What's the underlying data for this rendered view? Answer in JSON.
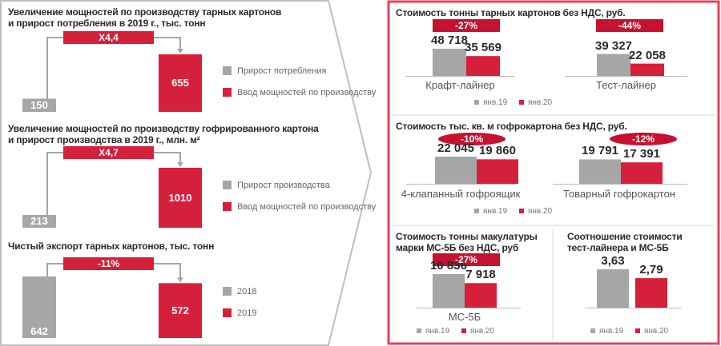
{
  "colors": {
    "gray": "#a6a6a6",
    "red": "#d5203b",
    "badge": "#c41230",
    "frame": "#e8405a",
    "chevron": "#bfbfbf"
  },
  "left_charts": [
    {
      "title1": "Увеличение мощностей по производству тарных картонов",
      "title2": "и прирост потребления в 2019 г., тыс. тонн",
      "multiplier": "Х4,4",
      "gray_label": "Прирост потребления",
      "red_label": "Ввод мощностей по производству"
    },
    {
      "title1": "Увеличение мощностей по производству гофрированного картона",
      "title2": "и прирост производства в 2019 г., млн. м²",
      "multiplier": "Х4,7",
      "gray_label": "Прирост производства",
      "red_label": "Ввод мощностей по производству"
    },
    {
      "title1": "Чистый экспорт тарных картонов, тыс. тонн",
      "title2": "",
      "multiplier": "-11%",
      "gray_label": "2018",
      "red_label": "2019"
    }
  ],
  "right_panels": [
    {
      "title": "Стоимость тонны тарных картонов без НДС, руб.",
      "legend": [
        "янв.19",
        "янв.20"
      ]
    },
    {
      "title": "Стоимость тыс. кв. м гофрокартона без НДС, руб.",
      "legend": [
        "янв.19",
        "янв.20"
      ]
    },
    {
      "title1": "Стоимость тонны макулатуры",
      "title2": "марки МС-5Б без НДС, руб",
      "legend": [
        "янв.19",
        "янв.20"
      ]
    },
    {
      "title1": "Соотношение стоимости",
      "title2": "тест-лайнера и МС-5Б",
      "legend": [
        "янв.19",
        "янв.20"
      ]
    }
  ],
  "chart_data": [
    {
      "type": "bar",
      "categories": [
        "Прирост потребления",
        "Ввод мощностей по производству"
      ],
      "values": [
        150,
        655
      ],
      "title": "Увеличение мощностей по производству тарных картонов и прирост потребления в 2019 г., тыс. тонн",
      "labels": [
        "150",
        "655"
      ],
      "change": "Х4,4"
    },
    {
      "type": "bar",
      "categories": [
        "Прирост производства",
        "Ввод мощностей по производству"
      ],
      "values": [
        213,
        1010
      ],
      "title": "Увеличение мощностей по производству гофрированного картона и прирост производства в 2019 г., млн. м²",
      "labels": [
        "213",
        "1010"
      ],
      "change": "Х4,7"
    },
    {
      "type": "bar",
      "categories": [
        "2018",
        "2019"
      ],
      "values": [
        642,
        572
      ],
      "title": "Чистый экспорт тарных картонов, тыс. тонн",
      "labels": [
        "642",
        "572"
      ],
      "change": "-11%"
    },
    {
      "type": "bar",
      "title": "Стоимость тонны тарных картонов без НДС, руб.",
      "categories": [
        "Крафт-лайнер",
        "Тест-лайнер"
      ],
      "series": [
        {
          "name": "янв.19",
          "values": [
            48718,
            39327
          ],
          "labels": [
            "48 718",
            "39 327"
          ]
        },
        {
          "name": "янв.20",
          "values": [
            35569,
            22058
          ],
          "labels": [
            "35 569",
            "22 058"
          ]
        }
      ],
      "changes": [
        "-27%",
        "-44%"
      ]
    },
    {
      "type": "bar",
      "title": "Стоимость тыс. кв. м гофрокартона без НДС, руб.",
      "categories": [
        "4-клапанный гофроящик",
        "Товарный гофрокартон"
      ],
      "series": [
        {
          "name": "янв.19",
          "values": [
            22045,
            19791
          ],
          "labels": [
            "22 045",
            "19 791"
          ]
        },
        {
          "name": "янв.20",
          "values": [
            19860,
            17391
          ],
          "labels": [
            "19 860",
            "17 391"
          ]
        }
      ],
      "changes": [
        "-10%",
        "-12%"
      ]
    },
    {
      "type": "bar",
      "title": "Стоимость тонны макулатуры марки МС-5Б без НДС, руб",
      "categories": [
        "МС-5Б"
      ],
      "series": [
        {
          "name": "янв.19",
          "values": [
            10836
          ],
          "labels": [
            "10 836"
          ]
        },
        {
          "name": "янв.20",
          "values": [
            7918
          ],
          "labels": [
            "7 918"
          ]
        }
      ],
      "changes": [
        "-27%"
      ]
    },
    {
      "type": "bar",
      "title": "Соотношение стоимости тест-лайнера и МС-5Б",
      "categories": [
        ""
      ],
      "series": [
        {
          "name": "янв.19",
          "values": [
            3.63
          ],
          "labels": [
            "3,63"
          ]
        },
        {
          "name": "янв.20",
          "values": [
            2.79
          ],
          "labels": [
            "2,79"
          ]
        }
      ],
      "changes": []
    }
  ]
}
